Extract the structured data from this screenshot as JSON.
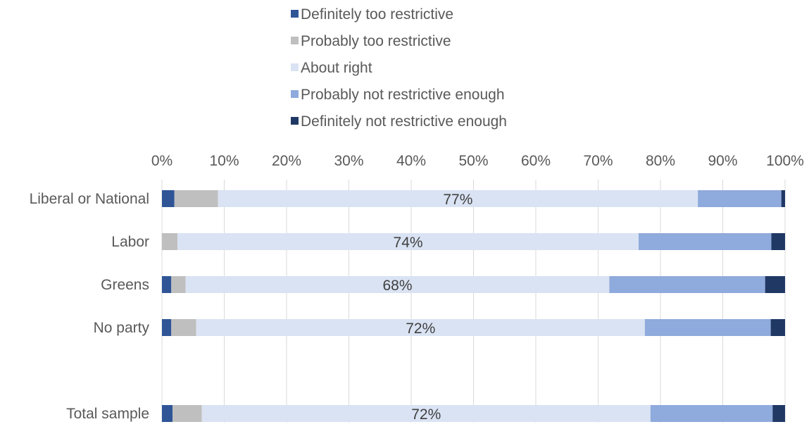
{
  "chart_data": {
    "type": "bar",
    "orientation": "horizontal",
    "stacked": "percent",
    "categories": [
      "Liberal or National",
      "Labor",
      "Greens",
      "No party",
      "Total sample"
    ],
    "series": [
      {
        "name": "Definitely too restrictive",
        "color": "#2f5597",
        "values": [
          2,
          0,
          1.5,
          1.5,
          1.7
        ]
      },
      {
        "name": "Probably too restrictive",
        "color": "#bfbfbf",
        "values": [
          7,
          2.5,
          2.3,
          4,
          4.7
        ]
      },
      {
        "name": "About right",
        "color": "#dae3f3",
        "values": [
          77,
          74,
          68,
          72,
          72
        ]
      },
      {
        "name": "Probably not restrictive enough",
        "color": "#8faadc",
        "values": [
          13.4,
          21.3,
          25,
          20.2,
          19.6
        ]
      },
      {
        "name": "Definitely not restrictive enough",
        "color": "#1f3864",
        "values": [
          0.6,
          2.2,
          3.2,
          2.3,
          2
        ]
      }
    ],
    "data_labels": [
      {
        "category": "Liberal or National",
        "series": "About right",
        "text": "77%"
      },
      {
        "category": "Labor",
        "series": "About right",
        "text": "74%"
      },
      {
        "category": "Greens",
        "series": "About right",
        "text": "68%"
      },
      {
        "category": "No party",
        "series": "About right",
        "text": "72%"
      },
      {
        "category": "Total sample",
        "series": "About right",
        "text": "72%"
      }
    ],
    "x_ticks": [
      "0%",
      "10%",
      "20%",
      "30%",
      "40%",
      "50%",
      "60%",
      "70%",
      "80%",
      "90%",
      "100%"
    ],
    "xlim": [
      0,
      100
    ],
    "x_axis_position": "top",
    "grid": "vertical",
    "legend_position": "top",
    "title": "",
    "xlabel": "",
    "ylabel": ""
  }
}
